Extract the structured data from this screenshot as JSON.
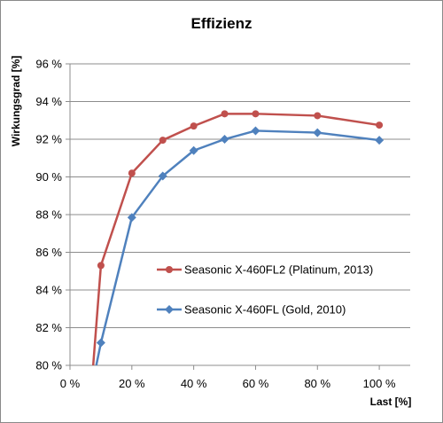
{
  "chart_data": {
    "type": "line",
    "title": "Effizienz",
    "xlabel": "Last [%]",
    "ylabel": "Wirkungsgrad [%]",
    "xlim": [
      0,
      110
    ],
    "ylim": [
      80,
      96
    ],
    "x_ticks": [
      0,
      20,
      40,
      60,
      80,
      100
    ],
    "x_tick_labels": [
      "0 %",
      "20 %",
      "40 %",
      "60 %",
      "80 %",
      "100 %"
    ],
    "y_ticks": [
      80,
      82,
      84,
      86,
      88,
      90,
      92,
      94,
      96
    ],
    "y_tick_labels": [
      "80 %",
      "82 %",
      "84 %",
      "86 %",
      "88 %",
      "90 %",
      "92 %",
      "94 %",
      "96 %"
    ],
    "grid": "horizontal",
    "legend_position": "lower-right",
    "series": [
      {
        "name": "Seasonic X-460FL2 (Platinum, 2013)",
        "color": "#C0504D",
        "marker": "circle",
        "x": [
          7.5,
          10,
          20,
          30,
          40,
          50,
          60,
          80,
          100
        ],
        "y": [
          80,
          85.3,
          90.2,
          91.95,
          92.7,
          93.35,
          93.35,
          93.25,
          92.75
        ]
      },
      {
        "name": "Seasonic X-460FL (Gold, 2010)",
        "color": "#4F81BD",
        "marker": "diamond",
        "x": [
          8.5,
          10,
          20,
          30,
          40,
          50,
          60,
          80,
          100
        ],
        "y": [
          80,
          81.2,
          87.85,
          90.05,
          91.4,
          92.0,
          92.45,
          92.35,
          91.95
        ]
      }
    ]
  }
}
